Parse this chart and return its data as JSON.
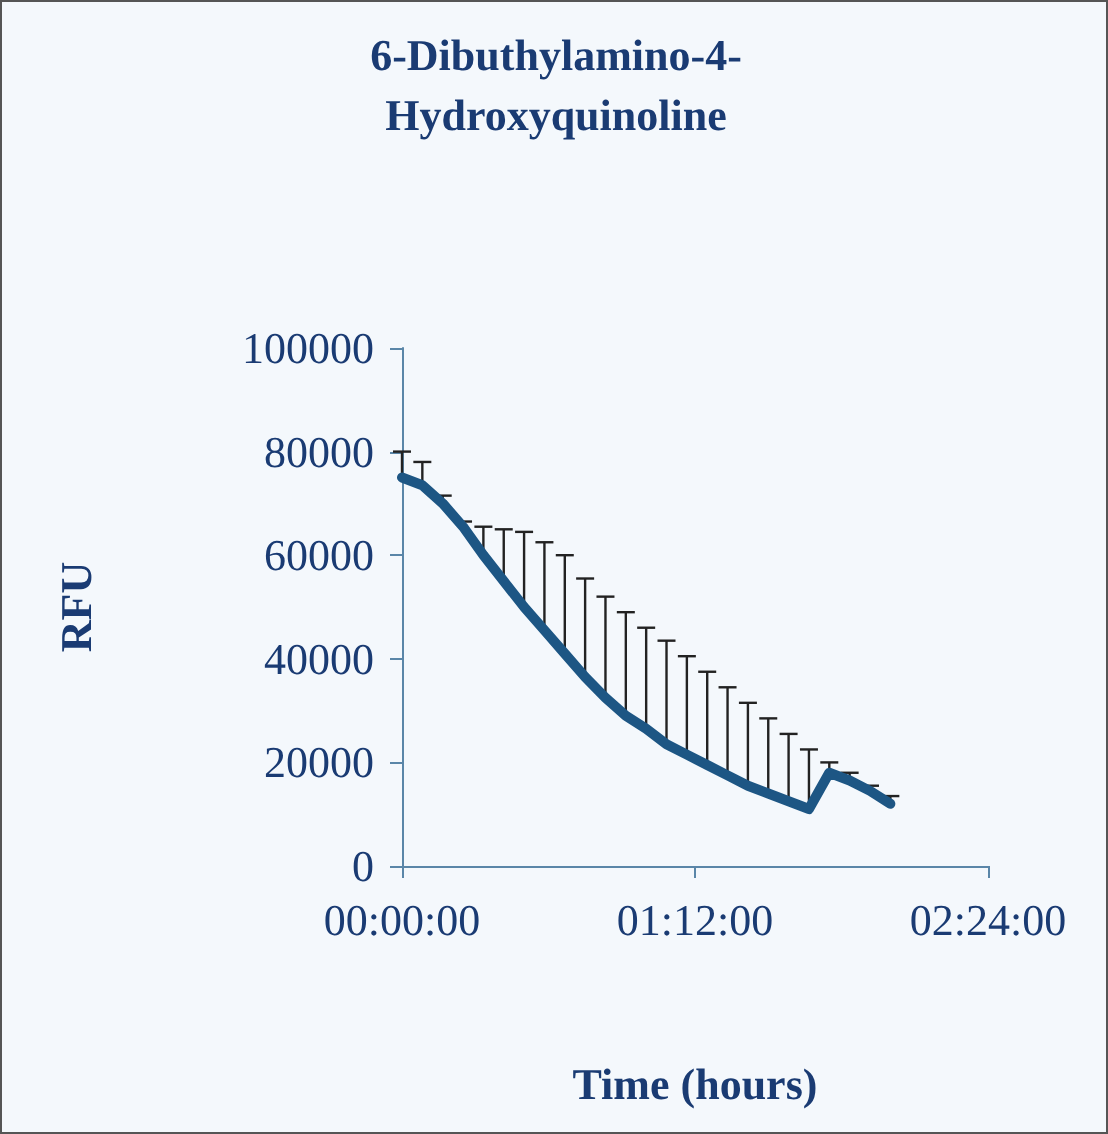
{
  "chart_data": {
    "type": "line",
    "title": "6-Dibuthylamino-4-Hydroxyquinoline",
    "xlabel": "Time (hours)",
    "ylabel": "RFU",
    "x": [
      0,
      0.0833,
      0.1667,
      0.25,
      0.3333,
      0.4167,
      0.5,
      0.5833,
      0.6667,
      0.75,
      0.8333,
      0.9167,
      1,
      1.0833,
      1.1667,
      1.25,
      1.3333,
      1.4167,
      1.5,
      1.5833,
      1.6667,
      1.75,
      1.8333,
      1.9167,
      2
    ],
    "series": [
      {
        "color": "#1d5684",
        "values": [
          75000,
          73500,
          70000,
          65500,
          60000,
          55000,
          50000,
          45500,
          41000,
          36500,
          32500,
          29000,
          26500,
          23500,
          21500,
          19500,
          17500,
          15500,
          14000,
          12500,
          11000,
          18000,
          16500,
          14500,
          12000
        ],
        "errors": [
          [
            75000,
            80000
          ],
          [
            73500,
            78000
          ],
          [
            70000,
            71500
          ],
          [
            65500,
            66500
          ],
          [
            60000,
            65500
          ],
          [
            55000,
            65000
          ],
          [
            50000,
            64500
          ],
          [
            45500,
            62500
          ],
          [
            41000,
            60000
          ],
          [
            36500,
            55500
          ],
          [
            32500,
            52000
          ],
          [
            29000,
            49000
          ],
          [
            26500,
            46000
          ],
          [
            23500,
            43500
          ],
          [
            21500,
            40500
          ],
          [
            19500,
            37500
          ],
          [
            17500,
            34500
          ],
          [
            15500,
            31500
          ],
          [
            14000,
            28500
          ],
          [
            12500,
            25500
          ],
          [
            11000,
            22500
          ],
          [
            18000,
            20000
          ],
          [
            16500,
            18000
          ],
          [
            14500,
            15500
          ],
          [
            12000,
            13500
          ]
        ]
      }
    ],
    "xlim": [
      0,
      2.4
    ],
    "xticks": [
      {
        "value": 0,
        "label": "00:00:00"
      },
      {
        "value": 1.2,
        "label": "01:12:00"
      },
      {
        "value": 2.4,
        "label": "02:24:00"
      }
    ],
    "ylim": [
      0,
      100000
    ],
    "yticks": [
      0,
      20000,
      40000,
      60000,
      80000,
      100000
    ],
    "grid": false,
    "marker": "none",
    "line_style": "solid"
  }
}
